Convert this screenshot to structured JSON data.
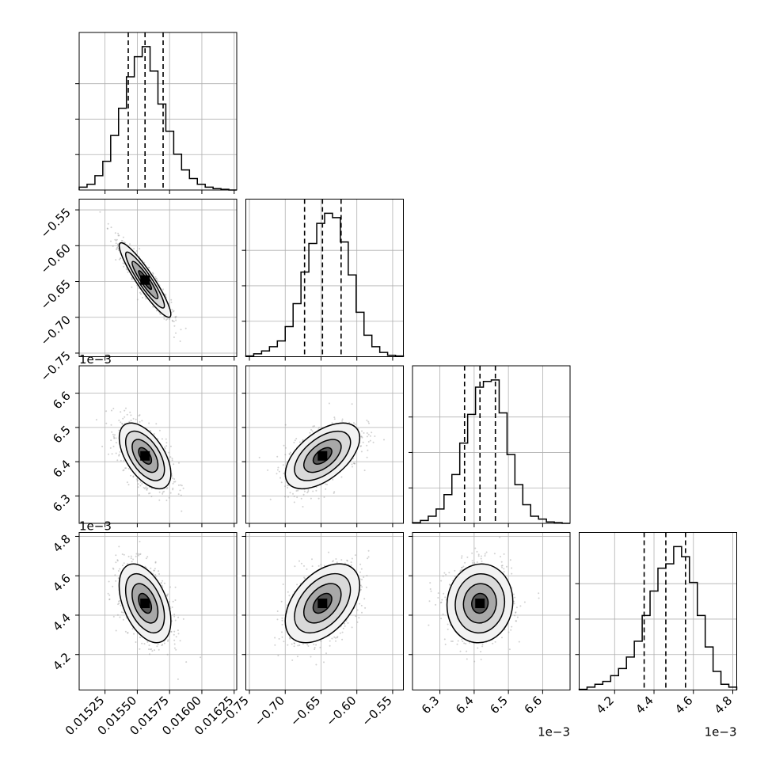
{
  "chart_data": {
    "type": "corner",
    "grid": true,
    "parameters": [
      {
        "ticks": [
          0.01525,
          0.0155,
          0.01575,
          0.016,
          0.01625
        ],
        "tick_labels": [
          "0.01525",
          "0.01550",
          "0.01575",
          "0.01600",
          "0.01625"
        ],
        "range": [
          0.01505,
          0.01627
        ],
        "offset_text": "",
        "quantiles": [
          0.01543,
          0.01556,
          0.0157
        ]
      },
      {
        "ticks": [
          -0.75,
          -0.7,
          -0.65,
          -0.6,
          -0.55
        ],
        "tick_labels": [
          "−0.75",
          "−0.70",
          "−0.65",
          "−0.60",
          "−0.55"
        ],
        "range": [
          -0.755,
          -0.535
        ],
        "offset_text": "",
        "quantiles": [
          -0.673,
          -0.648,
          -0.622
        ]
      },
      {
        "ticks": [
          6.3,
          6.4,
          6.5,
          6.6
        ],
        "tick_labels": [
          "6.3",
          "6.4",
          "6.5",
          "6.6"
        ],
        "range": [
          6.22,
          6.68
        ],
        "offset_text": "1e−3",
        "quantiles": [
          6.372,
          6.417,
          6.462
        ]
      },
      {
        "ticks": [
          4.2,
          4.4,
          4.6,
          4.8
        ],
        "tick_labels": [
          "4.2",
          "4.4",
          "4.6",
          "4.8"
        ],
        "range": [
          4.02,
          4.82
        ],
        "offset_text": "1e−3",
        "quantiles": [
          4.35,
          4.46,
          4.56
        ]
      }
    ],
    "histograms": [
      [
        0.02,
        0.04,
        0.1,
        0.2,
        0.38,
        0.57,
        0.79,
        0.93,
        1.0,
        0.83,
        0.6,
        0.41,
        0.25,
        0.14,
        0.08,
        0.04,
        0.02,
        0.01,
        0.005,
        0.0
      ],
      [
        0.005,
        0.02,
        0.04,
        0.07,
        0.11,
        0.21,
        0.37,
        0.59,
        0.79,
        0.93,
        1.0,
        0.97,
        0.8,
        0.57,
        0.31,
        0.15,
        0.07,
        0.03,
        0.01,
        0.005
      ],
      [
        0.005,
        0.02,
        0.05,
        0.1,
        0.2,
        0.34,
        0.56,
        0.76,
        0.95,
        0.99,
        1.0,
        0.77,
        0.48,
        0.27,
        0.13,
        0.05,
        0.03,
        0.01,
        0.005,
        0.0
      ],
      [
        0.005,
        0.02,
        0.04,
        0.06,
        0.1,
        0.15,
        0.23,
        0.34,
        0.52,
        0.69,
        0.85,
        0.88,
        1.0,
        0.93,
        0.75,
        0.52,
        0.3,
        0.13,
        0.04,
        0.02
      ]
    ],
    "correlations": {
      "1,0": -0.92,
      "2,0": -0.55,
      "2,1": 0.55,
      "3,0": -0.45,
      "3,1": 0.45,
      "3,2": 0.05
    },
    "sigmas": [
      0.0001,
      0.026,
      0.048,
      0.1
    ],
    "means": [
      0.01556,
      -0.648,
      6.417,
      4.46
    ],
    "colors": {
      "hist": "#000000",
      "quantile": "#000000",
      "points": "#9a9a9a",
      "contour": "#000000",
      "grid": "#b0b0b0"
    }
  }
}
